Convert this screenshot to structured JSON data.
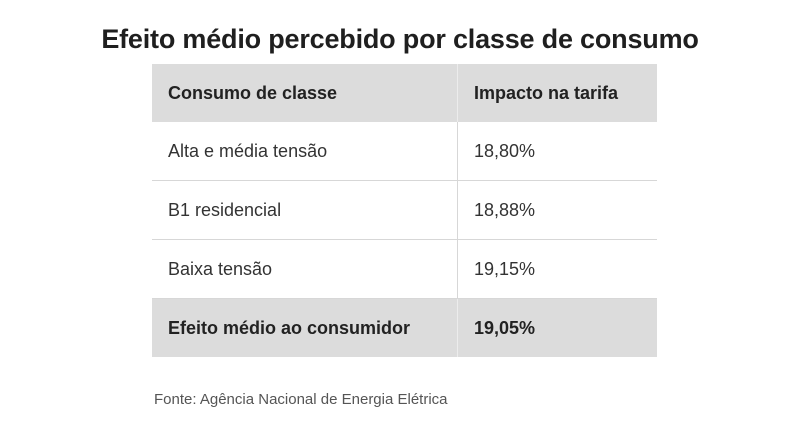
{
  "chart_data": {
    "type": "table",
    "title": "Efeito médio percebido por classe de consumo",
    "columns": [
      "Consumo de classe",
      "Impacto na tarifa"
    ],
    "rows": [
      [
        "Alta e média tensão",
        "18,80%"
      ],
      [
        "B1 residencial",
        "18,88%"
      ],
      [
        "Baixa tensão",
        "19,15%"
      ]
    ],
    "summary": [
      "Efeito médio ao consumidor",
      "19,05%"
    ],
    "source": "Fonte: Agência Nacional de Energia Elétrica"
  }
}
